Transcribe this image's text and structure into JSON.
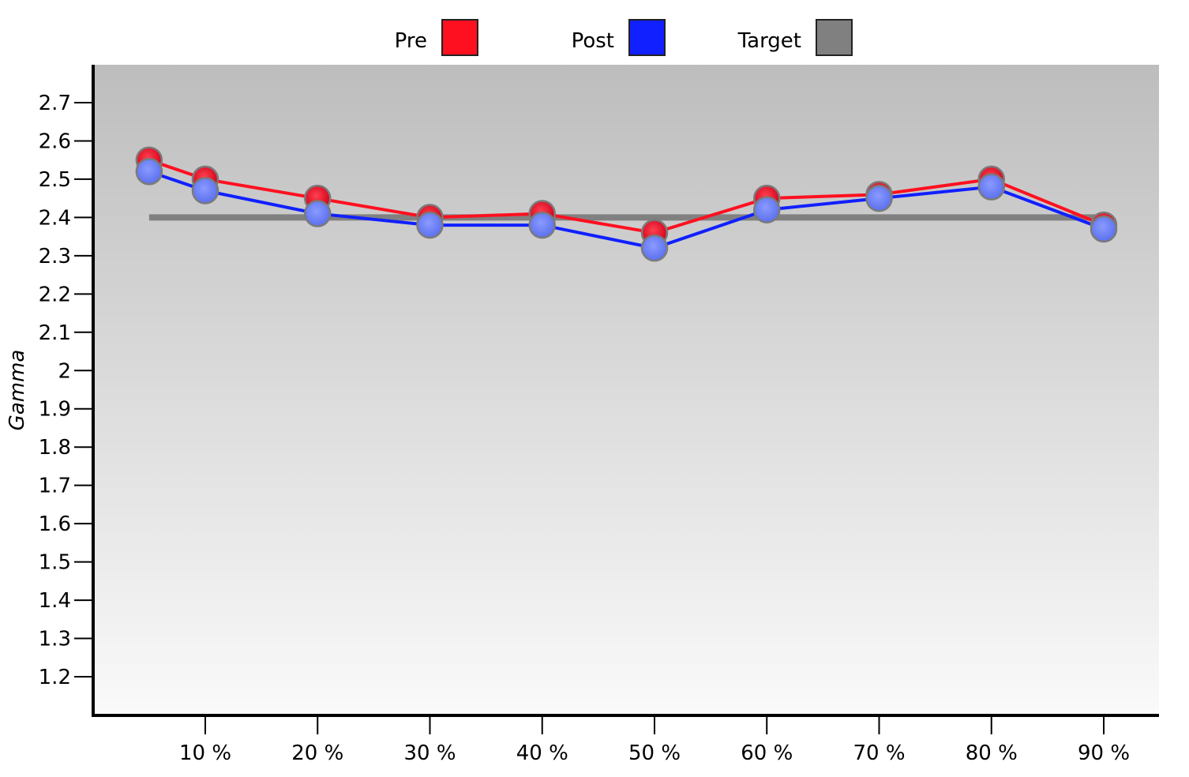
{
  "chart_data": {
    "type": "line",
    "title": "",
    "xlabel": "",
    "ylabel": "Gamma",
    "x": [
      5,
      10,
      20,
      30,
      40,
      50,
      60,
      70,
      80,
      90
    ],
    "x_tick_labels": [
      "10 %",
      "20 %",
      "30 %",
      "40 %",
      "50 %",
      "60 %",
      "70 %",
      "80 %",
      "90 %"
    ],
    "x_ticks": [
      10,
      20,
      30,
      40,
      50,
      60,
      70,
      80,
      90
    ],
    "xlim": [
      0,
      95
    ],
    "y_ticks": [
      1.2,
      1.3,
      1.4,
      1.5,
      1.6,
      1.7,
      1.8,
      1.9,
      2,
      2.1,
      2.2,
      2.3,
      2.4,
      2.5,
      2.6,
      2.7
    ],
    "y_tick_labels": [
      "1.2",
      "1.3",
      "1.4",
      "1.5",
      "1.6",
      "1.7",
      "1.8",
      "1.9",
      "2",
      "2.1",
      "2.2",
      "2.3",
      "2.4",
      "2.5",
      "2.6",
      "2.7"
    ],
    "ylim": [
      1.1,
      2.8
    ],
    "grid": false,
    "legend_position": "top-center",
    "series": [
      {
        "name": "Pre",
        "color": "#ff1020",
        "marker": true,
        "values": [
          2.55,
          2.5,
          2.45,
          2.4,
          2.41,
          2.36,
          2.45,
          2.46,
          2.5,
          2.38
        ]
      },
      {
        "name": "Post",
        "color": "#1020ff",
        "marker": true,
        "values": [
          2.52,
          2.47,
          2.41,
          2.38,
          2.38,
          2.32,
          2.42,
          2.45,
          2.48,
          2.37
        ]
      },
      {
        "name": "Target",
        "color": "#808080",
        "marker": false,
        "values": [
          2.4,
          2.4,
          2.4,
          2.4,
          2.4,
          2.4,
          2.4,
          2.4,
          2.4,
          2.4
        ]
      }
    ],
    "background_gradient": [
      "#bdbdbd",
      "#fafafa"
    ]
  }
}
